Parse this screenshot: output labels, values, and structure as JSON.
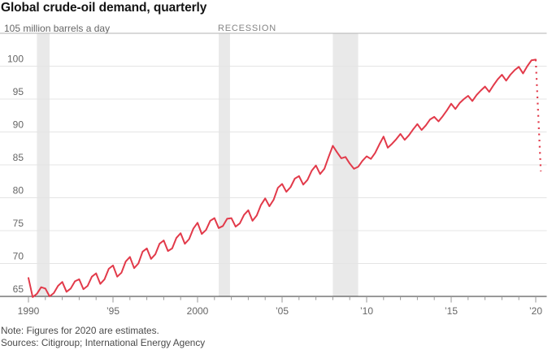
{
  "title": "Global crude-oil demand, quarterly",
  "unit_label": "105 million barrels a day",
  "recession_label": "RECESSION",
  "footer": {
    "note": "Note: Figures for 2020 are estimates.",
    "sources": "Sources: Citigroup; International Energy Agency"
  },
  "colors": {
    "line": "#e23a4a",
    "recession_band": "#e9e9e9",
    "gridline": "#e4e4e4",
    "top_rule": "#b3b3b3",
    "axis": "#333333",
    "tick": "#999999",
    "label_text": "#666666"
  },
  "chart_data": {
    "type": "line",
    "title": "Global crude-oil demand, quarterly",
    "ylabel": "million barrels a day",
    "frequency": "quarterly",
    "start_year": 1990,
    "points_per_year": 4,
    "ylim": [
      65,
      105
    ],
    "y_ticks": [
      65,
      70,
      75,
      80,
      85,
      90,
      95,
      100,
      105
    ],
    "y_tick_labels": [
      "65",
      "70",
      "75",
      "80",
      "85",
      "90",
      "95",
      "100"
    ],
    "x_ticks": [
      {
        "year": 1990,
        "label": "1990"
      },
      {
        "year": 1995,
        "label": "’95"
      },
      {
        "year": 2000,
        "label": "2000"
      },
      {
        "year": 2005,
        "label": "’05"
      },
      {
        "year": 2010,
        "label": "’10"
      },
      {
        "year": 2015,
        "label": "’15"
      },
      {
        "year": 2020,
        "label": "’20"
      }
    ],
    "minor_x_tick_every_years": 1,
    "x_range": [
      1990,
      2020
    ],
    "grid": "horizontal",
    "legend": "none",
    "series": [
      {
        "name": "Global crude-oil demand (million barrels a day)",
        "values": [
          67.8,
          64.9,
          65.4,
          66.4,
          66.2,
          65.0,
          65.5,
          66.6,
          67.2,
          65.7,
          66.2,
          67.3,
          67.6,
          66.1,
          66.6,
          68.0,
          68.5,
          66.9,
          67.6,
          69.2,
          69.7,
          68.0,
          68.6,
          70.3,
          71.0,
          69.3,
          70.0,
          71.8,
          72.3,
          70.7,
          71.4,
          73.0,
          73.5,
          71.9,
          72.3,
          73.9,
          74.6,
          73.0,
          73.7,
          75.3,
          76.2,
          74.5,
          75.1,
          76.5,
          76.9,
          75.4,
          75.7,
          76.8,
          76.9,
          75.6,
          76.1,
          77.4,
          78.1,
          76.5,
          77.3,
          78.9,
          79.9,
          78.7,
          79.7,
          81.5,
          82.1,
          80.9,
          81.6,
          82.9,
          83.3,
          82.0,
          82.7,
          84.1,
          84.9,
          83.6,
          84.4,
          86.2,
          87.9,
          86.9,
          86.0,
          86.2,
          85.2,
          84.4,
          84.7,
          85.6,
          86.3,
          85.9,
          86.8,
          88.1,
          89.3,
          87.6,
          88.2,
          88.9,
          89.7,
          88.8,
          89.5,
          90.4,
          91.2,
          90.3,
          91.0,
          91.9,
          92.3,
          91.6,
          92.4,
          93.3,
          94.3,
          93.5,
          94.4,
          95.0,
          95.5,
          94.7,
          95.6,
          96.3,
          96.9,
          96.1,
          97.1,
          98.0,
          98.7,
          97.8,
          98.7,
          99.4,
          99.9,
          98.9,
          100.0,
          100.9,
          101.0
        ]
      }
    ],
    "estimate_segment": {
      "label": "2020 estimate",
      "style": "dotted",
      "from_year": 2020.0,
      "from_value": 101.0,
      "to_year": 2020.3,
      "to_value": 84.0
    },
    "recessions": [
      [
        1990.5,
        1991.25
      ],
      [
        2001.25,
        2001.92
      ],
      [
        2008.0,
        2009.5
      ]
    ]
  }
}
